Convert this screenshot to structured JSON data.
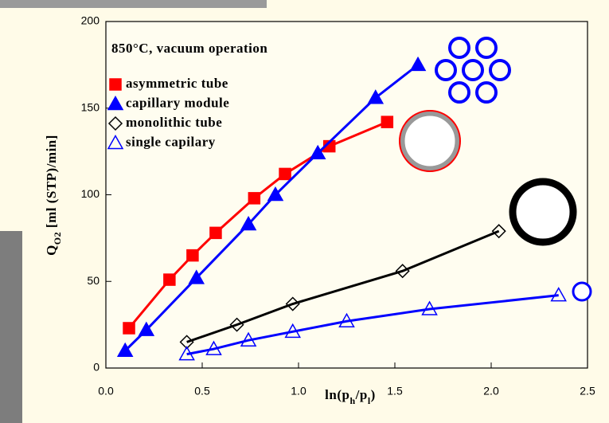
{
  "chart_data": {
    "type": "line",
    "title": "850°C, vacuum operation",
    "y_label": [
      {
        "text": "Q"
      },
      {
        "text": "O2",
        "sub": true
      },
      {
        "text": " [ml (STP)/min]"
      }
    ],
    "x_label": [
      {
        "text": "ln(p"
      },
      {
        "text": "h",
        "sub": true
      },
      {
        "text": "/p"
      },
      {
        "text": "l",
        "sub": true
      },
      {
        "text": ")"
      }
    ],
    "xlim": [
      0,
      2.5
    ],
    "xticks": [
      {
        "value": 0,
        "label": "0.0"
      },
      {
        "value": 0.5,
        "label": "0.5"
      },
      {
        "value": 1,
        "label": "1.0"
      },
      {
        "value": 1.5,
        "label": "1.5"
      },
      {
        "value": 2,
        "label": "2.0"
      },
      {
        "value": 2.5,
        "label": "2.5"
      }
    ],
    "ylim": [
      0,
      200
    ],
    "yticks": [
      0,
      50,
      100,
      150,
      200
    ],
    "series": [
      {
        "name": "asymmetric tube",
        "color": "#ff0000",
        "marker": "square",
        "filled": true,
        "x": [
          0.12,
          0.33,
          0.45,
          0.57,
          0.77,
          0.93,
          1.16,
          1.46
        ],
        "values": [
          23,
          51,
          65,
          78,
          98,
          112,
          128,
          142
        ]
      },
      {
        "name": "capillary module",
        "color": "#0000ff",
        "marker": "triangle",
        "filled": true,
        "x": [
          0.1,
          0.21,
          0.47,
          0.74,
          0.88,
          1.1,
          1.4,
          1.62
        ],
        "values": [
          10,
          22,
          52,
          83,
          100,
          124,
          156,
          175
        ]
      },
      {
        "name": "monolithic tube",
        "color": "#000000",
        "marker": "diamond",
        "filled": false,
        "x": [
          0.42,
          0.68,
          0.97,
          1.54,
          2.04
        ],
        "values": [
          15,
          25,
          37,
          56,
          79
        ]
      },
      {
        "name": "single capilary",
        "color": "#0000ff",
        "marker": "triangle",
        "filled": false,
        "x": [
          0.42,
          0.56,
          0.74,
          0.97,
          1.25,
          1.68,
          2.35
        ],
        "values": [
          8,
          11,
          16,
          21,
          27,
          34,
          42
        ]
      }
    ]
  }
}
